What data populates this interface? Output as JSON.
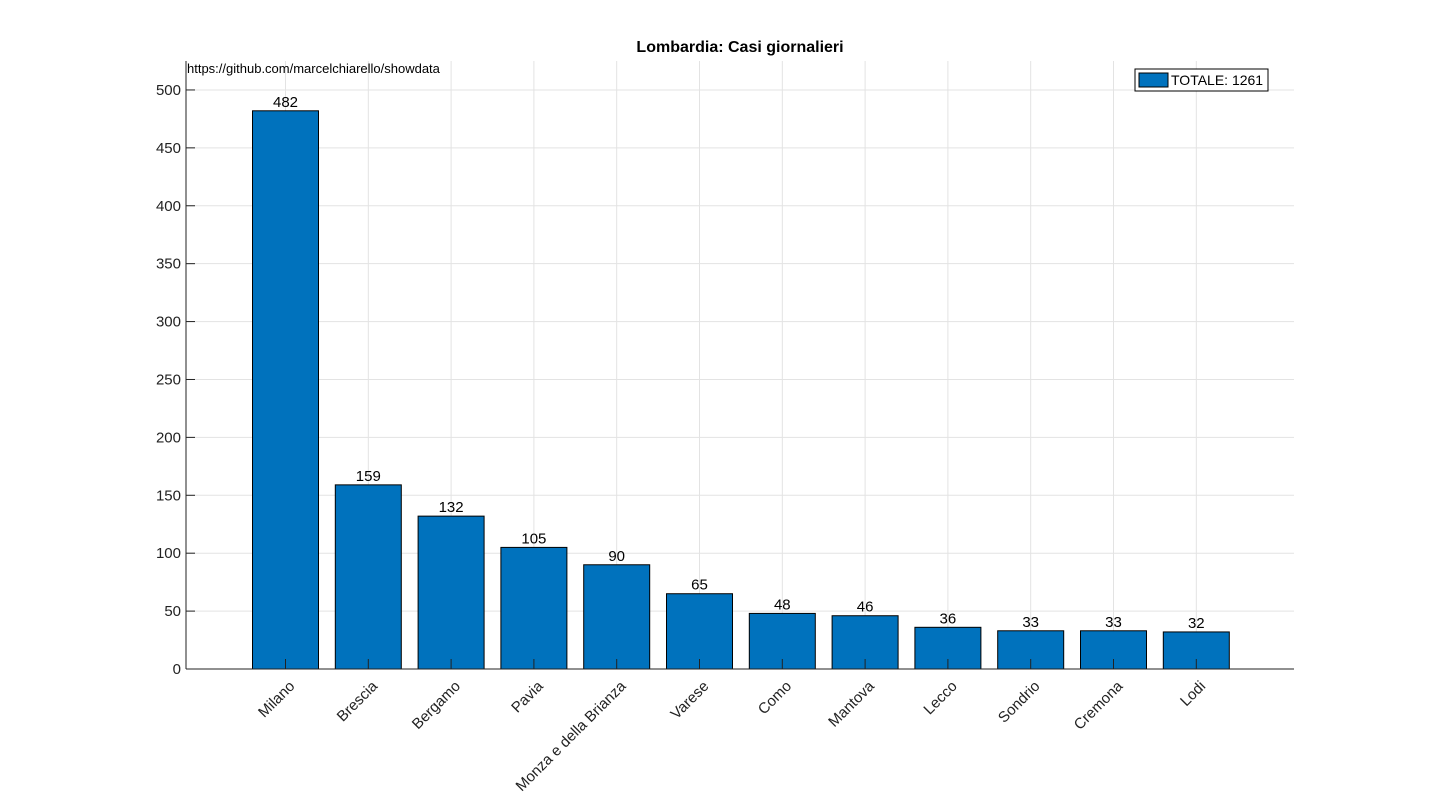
{
  "chart_data": {
    "type": "bar",
    "title": "Lombardia: Casi giornalieri",
    "source_text": "https://github.com/marcelchiarello/showdata",
    "categories": [
      "Milano",
      "Brescia",
      "Bergamo",
      "Pavia",
      "Monza e della Brianza",
      "Varese",
      "Como",
      "Mantova",
      "Lecco",
      "Sondrio",
      "Cremona",
      "Lodi"
    ],
    "values": [
      482,
      159,
      132,
      105,
      90,
      65,
      48,
      46,
      36,
      33,
      33,
      32
    ],
    "ylim": [
      0,
      525
    ],
    "yticks": [
      0,
      50,
      100,
      150,
      200,
      250,
      300,
      350,
      400,
      450,
      500
    ],
    "grid": true,
    "legend": {
      "label": "TOTALE: 1261",
      "placement": "top-right"
    },
    "colors": {
      "bar": "#0072bd",
      "edge": "#000000",
      "grid": "#e3e3e3"
    }
  }
}
